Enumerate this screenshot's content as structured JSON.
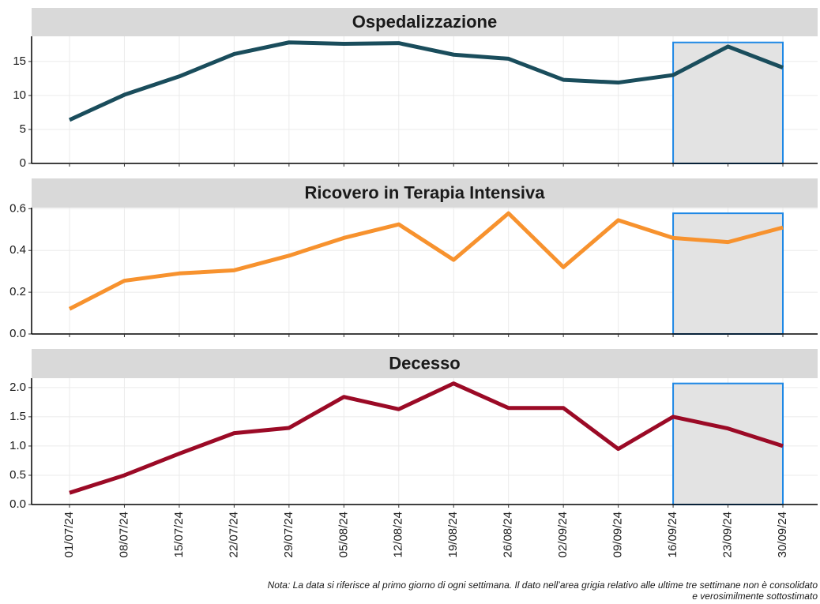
{
  "chart_data": [
    {
      "type": "line",
      "title": "Ospedalizzazione",
      "color": "#1a4d5c",
      "values": [
        6.4,
        10.1,
        12.8,
        16.1,
        17.8,
        17.6,
        17.7,
        16.0,
        15.4,
        12.3,
        11.9,
        13.0,
        17.2,
        14.1
      ],
      "ylim": [
        0,
        18.7
      ],
      "yticks": [
        0,
        5,
        10,
        15
      ],
      "grid": true
    },
    {
      "type": "line",
      "title": "Ricovero in Terapia Intensiva",
      "color": "#f7922e",
      "values": [
        0.12,
        0.255,
        0.29,
        0.305,
        0.375,
        0.46,
        0.525,
        0.355,
        0.578,
        0.32,
        0.545,
        0.46,
        0.44,
        0.51
      ],
      "ylim": [
        0,
        0.605
      ],
      "yticks": [
        {
          "value": 0,
          "label": "0.0"
        },
        0.2,
        0.4,
        0.6
      ],
      "grid": true
    },
    {
      "type": "line",
      "title": "Decesso",
      "color": "#9b0a26",
      "categories": [
        "01/07/24",
        "08/07/24",
        "15/07/24",
        "22/07/24",
        "29/07/24",
        "05/08/24",
        "12/08/24",
        "19/08/24",
        "26/08/24",
        "02/09/24",
        "09/09/24",
        "16/09/24",
        "23/09/24",
        "30/09/24"
      ],
      "values": [
        0.2,
        0.5,
        0.87,
        1.22,
        1.31,
        1.84,
        1.63,
        2.07,
        1.65,
        1.65,
        0.95,
        1.5,
        1.3,
        1.0
      ],
      "ylim": [
        0,
        2.16
      ],
      "yticks": [
        {
          "value": 0,
          "label": "0.0"
        },
        0.5,
        {
          "value": 1,
          "label": "1.0"
        },
        1.5,
        {
          "value": 2,
          "label": "2.0"
        }
      ],
      "grid": true
    }
  ],
  "note": [
    "Nota: La data si riferisce al primo giorno di ogni settimana. Il dato nell’area grigia relativo alle ultime tre settimane non è consolidato",
    "e verosimilmente sottostimato"
  ]
}
